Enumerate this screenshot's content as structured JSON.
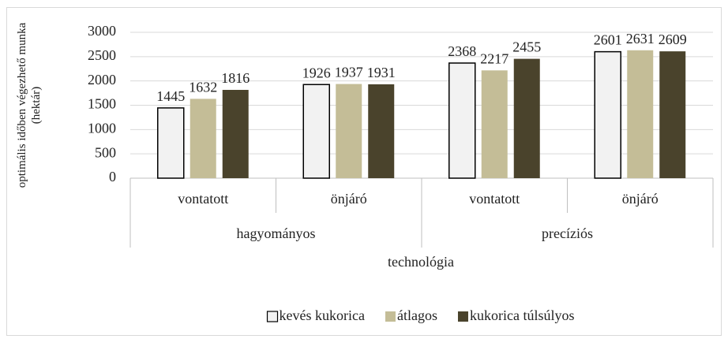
{
  "chart_data": {
    "type": "bar",
    "y_label": "optimális időben végezhető munka (hektár)",
    "x_label": "technológia",
    "categories": [
      "vontatott",
      "önjáró",
      "vontatott",
      "önjáró"
    ],
    "groups": [
      {
        "name": "hagyományos",
        "span": 2
      },
      {
        "name": "precíziós",
        "span": 2
      }
    ],
    "series": [
      {
        "name": "kevés kukorica",
        "color": "#f2f2f2",
        "edgecolor": "#000000",
        "values": [
          1445,
          1926,
          2368,
          2601
        ]
      },
      {
        "name": "átlagos",
        "color": "#c4bd97",
        "values": [
          1632,
          1937,
          2217,
          2631
        ]
      },
      {
        "name": "kukorica túlsúlyos",
        "color": "#4a432c",
        "values": [
          1816,
          1931,
          2455,
          2609
        ]
      }
    ],
    "ylim": [
      0,
      3000
    ],
    "yticks": [
      0,
      500,
      1000,
      1500,
      2000,
      2500,
      3000
    ],
    "grid": true,
    "legend": "bottom"
  }
}
